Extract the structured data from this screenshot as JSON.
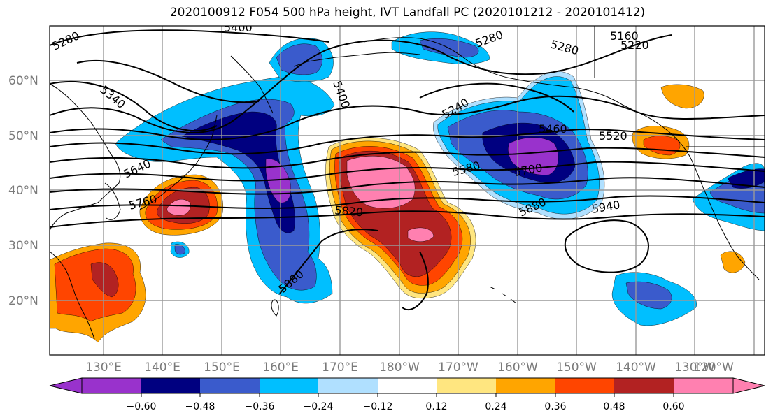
{
  "title": "2020100912 F054 500 hPa height, IVT Landfall PC (2020101212 - 2020101412)",
  "colors": {
    "levels": [
      "#9932cc",
      "#000080",
      "#3a5bcc",
      "#00bfff",
      "#b0e0ff",
      "#ffffff",
      "#ffe680",
      "#ffa500",
      "#ff4500",
      "#b22222",
      "#ff80b0"
    ],
    "land": "#000000",
    "grid": "#999999"
  },
  "lat_labels": [
    "60°N",
    "50°N",
    "40°N",
    "30°N",
    "20°N"
  ],
  "lon_labels": [
    "130°E",
    "140°E",
    "150°E",
    "160°E",
    "170°E",
    "180°W",
    "170°W",
    "160°W",
    "150°W",
    "140°W",
    "130°W",
    "120°W"
  ],
  "contour_labels": [
    "5280",
    "5340",
    "5400",
    "5400",
    "5160",
    "5220",
    "5280",
    "5460",
    "5520",
    "5580",
    "5640",
    "5700",
    "5760",
    "5820",
    "5880",
    "5940",
    "5880",
    "5240",
    "5280"
  ],
  "colorbar": {
    "tick_labels": [
      "−0.60",
      "−0.48",
      "−0.36",
      "−0.24",
      "−0.12",
      "0.12",
      "0.24",
      "0.36",
      "0.48",
      "0.60"
    ]
  }
}
